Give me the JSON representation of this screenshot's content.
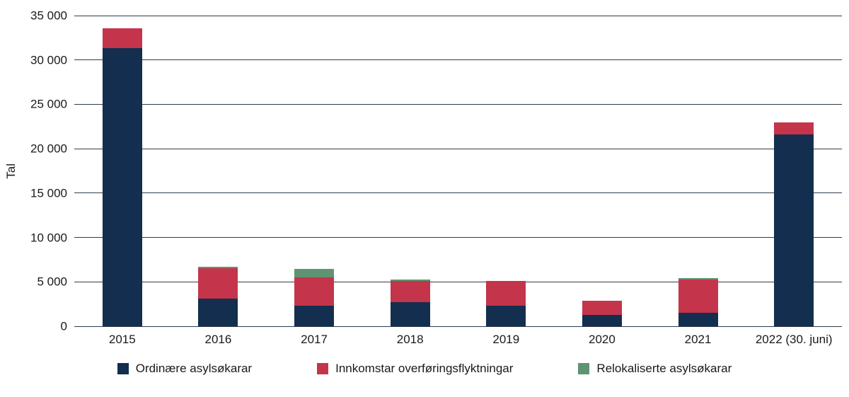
{
  "chart_data": {
    "type": "bar",
    "stacked": true,
    "title": "",
    "xlabel": "",
    "ylabel": "Tal",
    "categories": [
      "2015",
      "2016",
      "2017",
      "2018",
      "2019",
      "2020",
      "2021",
      "2022 (30. juni)"
    ],
    "series": [
      {
        "name": "Ordinære asylsøkarar",
        "color": "#132e4e",
        "values": [
          31300,
          3100,
          2300,
          2700,
          2300,
          1300,
          1500,
          21600
        ]
      },
      {
        "name": "Innkomstar overføringsflyktningar",
        "color": "#c4344b",
        "values": [
          2300,
          3400,
          3200,
          2400,
          2800,
          1600,
          3800,
          1400
        ]
      },
      {
        "name": "Relokaliserte asylsøkarar",
        "color": "#5f9472",
        "values": [
          0,
          200,
          1000,
          200,
          0,
          0,
          150,
          0
        ]
      }
    ],
    "ylim": [
      0,
      35000
    ],
    "ytick_step": 5000,
    "ytick_labels": [
      "0",
      "5 000",
      "10 000",
      "15 000",
      "20 000",
      "25 000",
      "30 000",
      "35 000"
    ],
    "grid": true,
    "legend_position": "bottom"
  }
}
